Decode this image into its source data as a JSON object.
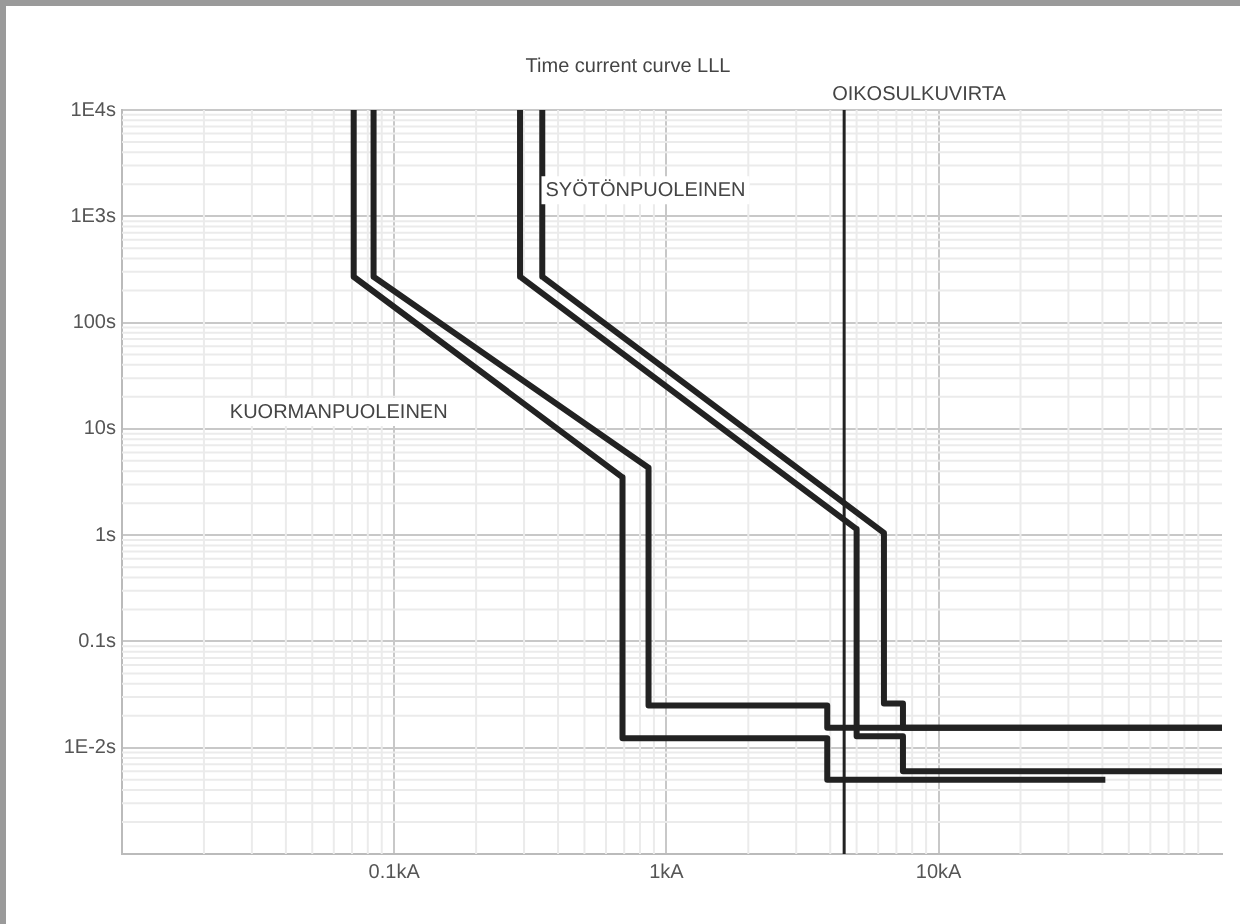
{
  "chart_data": {
    "type": "line",
    "title": "Time current curve LLL",
    "log": "xy",
    "grid": true,
    "legend": false,
    "marker": "none",
    "line_style": "solid",
    "xlim": [
      0.01,
      110
    ],
    "ylim": [
      0.001,
      10000
    ],
    "xticks": [
      {
        "value": 0.1,
        "label": "0.1kA"
      },
      {
        "value": 1,
        "label": "1kA"
      },
      {
        "value": 10,
        "label": "10kA"
      }
    ],
    "yticks": [
      {
        "value": 0.01,
        "label": "1E-2s"
      },
      {
        "value": 0.1,
        "label": "0.1s"
      },
      {
        "value": 1,
        "label": "1s"
      },
      {
        "value": 10,
        "label": "10s"
      },
      {
        "value": 100,
        "label": "100s"
      },
      {
        "value": 1000,
        "label": "1E3s"
      },
      {
        "value": 10000,
        "label": "1E4s"
      }
    ],
    "series": [
      {
        "color": "#222222",
        "x": [
          0.071,
          0.071,
          0.69,
          0.69,
          3.9,
          3.9,
          41
        ],
        "values": [
          10000,
          270,
          3.5,
          0.0123,
          0.0123,
          0.005,
          0.005
        ]
      },
      {
        "color": "#222222",
        "x": [
          0.084,
          0.084,
          0.86,
          0.86,
          3.9,
          3.9,
          110
        ],
        "values": [
          10000,
          270,
          4.3,
          0.025,
          0.025,
          0.0154,
          0.0154
        ]
      },
      {
        "color": "#222222",
        "x": [
          0.29,
          0.29,
          5,
          5,
          7.4,
          7.4,
          110
        ],
        "values": [
          10000,
          270,
          1.14,
          0.0128,
          0.0128,
          0.006,
          0.006
        ]
      },
      {
        "color": "#222222",
        "x": [
          0.35,
          0.35,
          6.3,
          6.3,
          7.4,
          7.4,
          110
        ],
        "values": [
          10000,
          270,
          1.05,
          0.026,
          0.026,
          0.0154,
          0.0154
        ]
      }
    ],
    "ref_lines": [
      {
        "axis": "x",
        "value": 4.5,
        "label": "OIKOSULKUVIRTA",
        "color": "#222222"
      }
    ],
    "annotations": [
      "KUORMANPUOLEINEN",
      "SYÖTÖNPUOLEINEN"
    ]
  }
}
